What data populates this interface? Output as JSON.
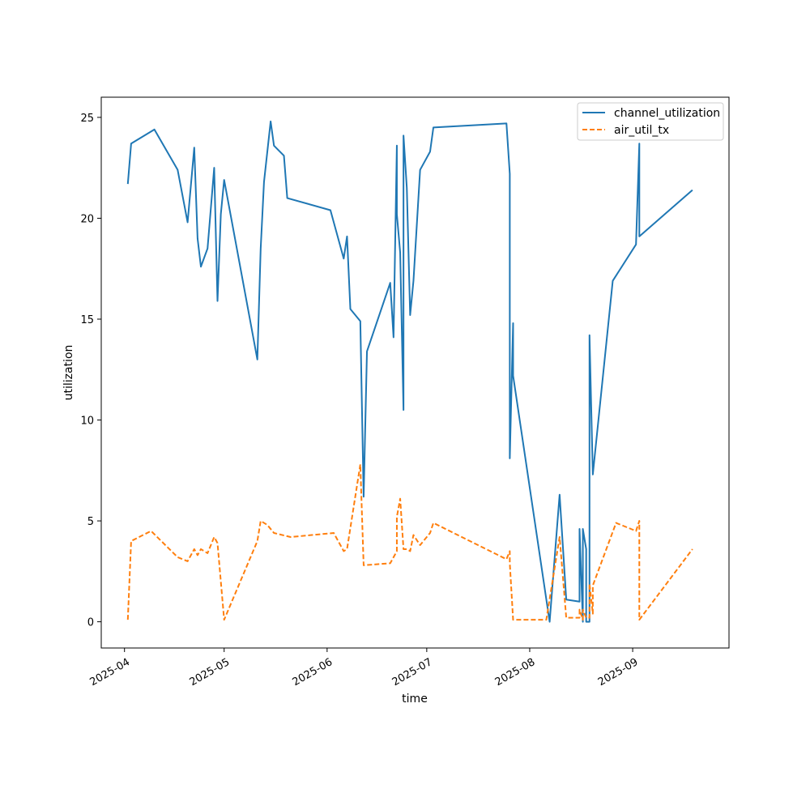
{
  "chart_data": {
    "type": "line",
    "title": "",
    "xlabel": "time",
    "ylabel": "utilization",
    "x_ticks": [
      {
        "date": "2025-04-01",
        "label": "2025-04"
      },
      {
        "date": "2025-05-01",
        "label": "2025-05"
      },
      {
        "date": "2025-06-01",
        "label": "2025-06"
      },
      {
        "date": "2025-07-01",
        "label": "2025-07"
      },
      {
        "date": "2025-08-01",
        "label": "2025-08"
      },
      {
        "date": "2025-09-01",
        "label": "2025-09"
      }
    ],
    "y_ticks": [
      0,
      5,
      10,
      15,
      20,
      25
    ],
    "xlim": [
      "2025-03-25",
      "2025-09-30"
    ],
    "ylim": [
      -1.3,
      26.0
    ],
    "grid": false,
    "legend_position": "top-right",
    "series": [
      {
        "name": "channel_utilization",
        "color": "#1f77b4",
        "dash": "solid",
        "points": [
          [
            "2025-04-02",
            21.7
          ],
          [
            "2025-04-03",
            23.7
          ],
          [
            "2025-04-10",
            24.4
          ],
          [
            "2025-04-17",
            22.4
          ],
          [
            "2025-04-20",
            19.8
          ],
          [
            "2025-04-22",
            23.5
          ],
          [
            "2025-04-23",
            19.0
          ],
          [
            "2025-04-24",
            17.6
          ],
          [
            "2025-04-26",
            18.5
          ],
          [
            "2025-04-28",
            22.5
          ],
          [
            "2025-04-29",
            15.9
          ],
          [
            "2025-04-30",
            20.2
          ],
          [
            "2025-05-01",
            21.9
          ],
          [
            "2025-05-11",
            13.0
          ],
          [
            "2025-05-12",
            18.5
          ],
          [
            "2025-05-13",
            21.8
          ],
          [
            "2025-05-15",
            24.8
          ],
          [
            "2025-05-16",
            23.6
          ],
          [
            "2025-05-19",
            23.1
          ],
          [
            "2025-05-20",
            21.0
          ],
          [
            "2025-06-02",
            20.4
          ],
          [
            "2025-06-06",
            18.0
          ],
          [
            "2025-06-07",
            19.1
          ],
          [
            "2025-06-08",
            15.5
          ],
          [
            "2025-06-11",
            14.9
          ],
          [
            "2025-06-12",
            6.2
          ],
          [
            "2025-06-13",
            13.4
          ],
          [
            "2025-06-20",
            16.8
          ],
          [
            "2025-06-21",
            14.1
          ],
          [
            "2025-06-22",
            23.6
          ],
          [
            "2025-06-22",
            20.2
          ],
          [
            "2025-06-23",
            18.3
          ],
          [
            "2025-06-24",
            10.5
          ],
          [
            "2025-06-24",
            24.1
          ],
          [
            "2025-06-25",
            21.5
          ],
          [
            "2025-06-26",
            15.2
          ],
          [
            "2025-06-27",
            16.9
          ],
          [
            "2025-06-29",
            22.4
          ],
          [
            "2025-07-02",
            23.3
          ],
          [
            "2025-07-03",
            24.5
          ],
          [
            "2025-07-25",
            24.7
          ],
          [
            "2025-07-26",
            22.2
          ],
          [
            "2025-07-26",
            8.1
          ],
          [
            "2025-07-27",
            14.8
          ],
          [
            "2025-07-27",
            12.2
          ],
          [
            "2025-08-07",
            0.0
          ],
          [
            "2025-08-10",
            6.3
          ],
          [
            "2025-08-12",
            1.1
          ],
          [
            "2025-08-16",
            1.0
          ],
          [
            "2025-08-16",
            4.6
          ],
          [
            "2025-08-17",
            0.0
          ],
          [
            "2025-08-17",
            4.6
          ],
          [
            "2025-08-18",
            3.6
          ],
          [
            "2025-08-18",
            0.0
          ],
          [
            "2025-08-19",
            0.0
          ],
          [
            "2025-08-19",
            14.2
          ],
          [
            "2025-08-20",
            7.3
          ],
          [
            "2025-08-26",
            16.9
          ],
          [
            "2025-09-02",
            18.7
          ],
          [
            "2025-09-03",
            23.7
          ],
          [
            "2025-09-03",
            19.1
          ],
          [
            "2025-09-19",
            21.4
          ]
        ]
      },
      {
        "name": "air_util_tx",
        "color": "#ff7f0e",
        "dash": "dashed",
        "points": [
          [
            "2025-04-02",
            0.1
          ],
          [
            "2025-04-03",
            4.0
          ],
          [
            "2025-04-09",
            4.5
          ],
          [
            "2025-04-17",
            3.2
          ],
          [
            "2025-04-20",
            3.0
          ],
          [
            "2025-04-22",
            3.6
          ],
          [
            "2025-04-23",
            3.3
          ],
          [
            "2025-04-24",
            3.6
          ],
          [
            "2025-04-26",
            3.4
          ],
          [
            "2025-04-28",
            4.2
          ],
          [
            "2025-04-29",
            3.9
          ],
          [
            "2025-05-01",
            0.1
          ],
          [
            "2025-05-11",
            4.0
          ],
          [
            "2025-05-12",
            5.0
          ],
          [
            "2025-05-14",
            4.8
          ],
          [
            "2025-05-16",
            4.4
          ],
          [
            "2025-05-21",
            4.2
          ],
          [
            "2025-06-03",
            4.4
          ],
          [
            "2025-06-06",
            3.5
          ],
          [
            "2025-06-07",
            3.6
          ],
          [
            "2025-06-11",
            7.8
          ],
          [
            "2025-06-12",
            2.8
          ],
          [
            "2025-06-20",
            2.9
          ],
          [
            "2025-06-22",
            3.5
          ],
          [
            "2025-06-22",
            5.2
          ],
          [
            "2025-06-23",
            6.1
          ],
          [
            "2025-06-24",
            3.6
          ],
          [
            "2025-06-25",
            3.6
          ],
          [
            "2025-06-26",
            3.5
          ],
          [
            "2025-06-27",
            4.3
          ],
          [
            "2025-06-29",
            3.8
          ],
          [
            "2025-07-02",
            4.4
          ],
          [
            "2025-07-03",
            4.9
          ],
          [
            "2025-07-25",
            3.1
          ],
          [
            "2025-07-26",
            3.5
          ],
          [
            "2025-07-26",
            2.9
          ],
          [
            "2025-07-27",
            0.1
          ],
          [
            "2025-08-06",
            0.1
          ],
          [
            "2025-08-10",
            4.2
          ],
          [
            "2025-08-12",
            0.2
          ],
          [
            "2025-08-16",
            0.2
          ],
          [
            "2025-08-16",
            0.6
          ],
          [
            "2025-08-17",
            0.1
          ],
          [
            "2025-08-17",
            0.6
          ],
          [
            "2025-08-18",
            0.2
          ],
          [
            "2025-08-19",
            0.2
          ],
          [
            "2025-08-19",
            1.9
          ],
          [
            "2025-08-20",
            0.4
          ],
          [
            "2025-08-20",
            1.8
          ],
          [
            "2025-08-27",
            4.9
          ],
          [
            "2025-09-02",
            4.5
          ],
          [
            "2025-09-03",
            5.0
          ],
          [
            "2025-09-03",
            0.1
          ],
          [
            "2025-09-19",
            3.6
          ]
        ]
      }
    ]
  }
}
